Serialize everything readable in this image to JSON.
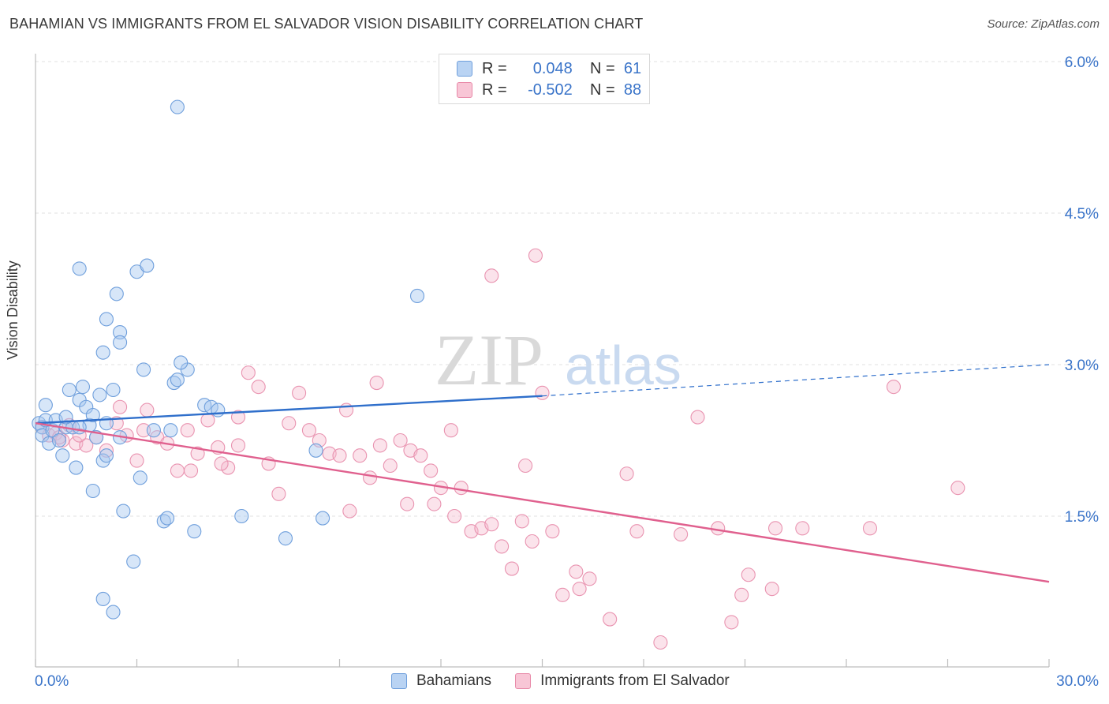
{
  "title": "BAHAMIAN VS IMMIGRANTS FROM EL SALVADOR VISION DISABILITY CORRELATION CHART",
  "source": "Source: ZipAtlas.com",
  "watermark": {
    "zip": "ZIP",
    "atlas": "atlas"
  },
  "legend": {
    "r_label": "R =",
    "n_label": "N =",
    "series": [
      {
        "r": "0.048",
        "n": "61",
        "fill": "#b9d3f3",
        "stroke": "#6f9fdc"
      },
      {
        "r": "-0.502",
        "n": "88",
        "fill": "#f8c6d6",
        "stroke": "#e88aa9"
      }
    ]
  },
  "bottom_legend": [
    "Bahamians",
    "Immigrants from El Salvador"
  ],
  "colors": {
    "blue_fill": "rgba(166,199,240,0.45)",
    "blue_stroke": "#6f9fdc",
    "blue_line": "#2f6fcb",
    "pink_fill": "rgba(246,184,204,0.40)",
    "pink_stroke": "#e993b0",
    "pink_line": "#e0608e",
    "axis_text": "#3a74c9",
    "grid": "#e0e0e0"
  },
  "chart_data": {
    "type": "scatter",
    "title": "BAHAMIAN VS IMMIGRANTS FROM EL SALVADOR VISION DISABILITY CORRELATION CHART",
    "xlabel": "",
    "ylabel": "Vision Disability",
    "xlim": [
      0,
      30
    ],
    "ylim": [
      0,
      6.3
    ],
    "x_tick_labels": [
      "0.0%",
      "30.0%"
    ],
    "y_ticks": [
      1.5,
      3.0,
      4.5,
      6.0
    ],
    "y_tick_labels": [
      "1.5%",
      "3.0%",
      "4.5%",
      "6.0%"
    ],
    "grid": true,
    "legend_position": "top-center",
    "series": [
      {
        "name": "Bahamians",
        "trend": {
          "x0": 0,
          "y0": 2.42,
          "x1": 15,
          "y1": 2.69,
          "dash_to_x": 30,
          "dash_to_y": 3.0
        },
        "points": [
          [
            0.1,
            2.42
          ],
          [
            0.2,
            2.38
          ],
          [
            0.3,
            2.45
          ],
          [
            0.2,
            2.3
          ],
          [
            0.4,
            2.22
          ],
          [
            0.3,
            2.6
          ],
          [
            0.5,
            2.35
          ],
          [
            0.6,
            2.45
          ],
          [
            0.7,
            2.25
          ],
          [
            0.8,
            2.1
          ],
          [
            0.9,
            2.38
          ],
          [
            1.0,
            2.75
          ],
          [
            1.1,
            2.38
          ],
          [
            1.2,
            1.98
          ],
          [
            1.3,
            2.65
          ],
          [
            1.4,
            2.78
          ],
          [
            1.5,
            2.58
          ],
          [
            1.6,
            2.4
          ],
          [
            1.7,
            2.5
          ],
          [
            1.8,
            2.28
          ],
          [
            1.9,
            2.7
          ],
          [
            2.0,
            2.05
          ],
          [
            2.1,
            2.42
          ],
          [
            2.3,
            2.75
          ],
          [
            2.5,
            2.28
          ],
          [
            1.3,
            2.38
          ],
          [
            0.9,
            2.48
          ],
          [
            2.1,
            2.1
          ],
          [
            3.1,
            1.88
          ],
          [
            1.7,
            1.75
          ],
          [
            2.6,
            1.55
          ],
          [
            3.5,
            2.35
          ],
          [
            2.0,
            3.12
          ],
          [
            2.1,
            3.45
          ],
          [
            3.2,
            2.95
          ],
          [
            4.1,
            2.82
          ],
          [
            4.2,
            2.85
          ],
          [
            4.5,
            2.95
          ],
          [
            4.3,
            3.02
          ],
          [
            5.0,
            2.6
          ],
          [
            5.2,
            2.58
          ],
          [
            5.4,
            2.55
          ],
          [
            1.3,
            3.95
          ],
          [
            2.4,
            3.7
          ],
          [
            2.5,
            3.32
          ],
          [
            2.5,
            3.22
          ],
          [
            3.0,
            3.92
          ],
          [
            3.3,
            3.98
          ],
          [
            4.0,
            2.35
          ],
          [
            3.8,
            1.45
          ],
          [
            3.9,
            1.48
          ],
          [
            4.7,
            1.35
          ],
          [
            6.1,
            1.5
          ],
          [
            7.4,
            1.28
          ],
          [
            8.3,
            2.15
          ],
          [
            8.5,
            1.48
          ],
          [
            2.9,
            1.05
          ],
          [
            2.0,
            0.68
          ],
          [
            2.3,
            0.55
          ],
          [
            11.3,
            3.68
          ],
          [
            4.2,
            5.55
          ]
        ]
      },
      {
        "name": "Immigrants from El Salvador",
        "trend": {
          "x0": 0,
          "y0": 2.42,
          "x1": 30,
          "y1": 0.85
        },
        "points": [
          [
            0.2,
            2.38
          ],
          [
            0.4,
            2.3
          ],
          [
            0.6,
            2.32
          ],
          [
            0.8,
            2.25
          ],
          [
            1.0,
            2.4
          ],
          [
            1.2,
            2.22
          ],
          [
            1.5,
            2.2
          ],
          [
            1.8,
            2.28
          ],
          [
            2.1,
            2.15
          ],
          [
            2.4,
            2.42
          ],
          [
            2.7,
            2.3
          ],
          [
            3.0,
            2.05
          ],
          [
            3.3,
            2.55
          ],
          [
            3.6,
            2.28
          ],
          [
            3.9,
            2.22
          ],
          [
            4.2,
            1.95
          ],
          [
            4.5,
            2.35
          ],
          [
            4.8,
            2.12
          ],
          [
            5.1,
            2.45
          ],
          [
            5.4,
            2.18
          ],
          [
            5.7,
            1.98
          ],
          [
            6.0,
            2.2
          ],
          [
            6.3,
            2.92
          ],
          [
            6.6,
            2.78
          ],
          [
            6.9,
            2.02
          ],
          [
            7.2,
            1.72
          ],
          [
            7.5,
            2.42
          ],
          [
            7.8,
            2.72
          ],
          [
            8.1,
            2.35
          ],
          [
            8.4,
            2.25
          ],
          [
            8.7,
            2.12
          ],
          [
            9.0,
            2.1
          ],
          [
            9.3,
            1.55
          ],
          [
            9.6,
            2.1
          ],
          [
            9.9,
            1.88
          ],
          [
            10.2,
            2.2
          ],
          [
            10.5,
            2.0
          ],
          [
            10.8,
            2.25
          ],
          [
            11.1,
            2.15
          ],
          [
            11.4,
            2.1
          ],
          [
            11.7,
            1.95
          ],
          [
            12.0,
            1.78
          ],
          [
            12.3,
            2.35
          ],
          [
            12.6,
            1.78
          ],
          [
            12.9,
            1.35
          ],
          [
            13.2,
            1.38
          ],
          [
            13.5,
            1.42
          ],
          [
            13.8,
            1.2
          ],
          [
            14.1,
            0.98
          ],
          [
            14.4,
            1.45
          ],
          [
            14.7,
            1.25
          ],
          [
            15.0,
            2.72
          ],
          [
            15.3,
            1.35
          ],
          [
            15.6,
            0.72
          ],
          [
            16.1,
            0.78
          ],
          [
            16.4,
            0.88
          ],
          [
            17.0,
            0.48
          ],
          [
            17.5,
            1.92
          ],
          [
            17.8,
            1.35
          ],
          [
            18.5,
            0.25
          ],
          [
            19.1,
            1.32
          ],
          [
            19.6,
            2.48
          ],
          [
            20.2,
            1.38
          ],
          [
            20.6,
            0.45
          ],
          [
            20.9,
            0.72
          ],
          [
            21.1,
            0.92
          ],
          [
            21.8,
            0.78
          ],
          [
            21.9,
            1.38
          ],
          [
            13.5,
            3.88
          ],
          [
            14.8,
            4.08
          ],
          [
            10.1,
            2.82
          ],
          [
            9.2,
            2.55
          ],
          [
            6.0,
            2.48
          ],
          [
            5.5,
            2.02
          ],
          [
            4.6,
            1.95
          ],
          [
            3.2,
            2.35
          ],
          [
            2.5,
            2.58
          ],
          [
            1.3,
            2.3
          ],
          [
            0.7,
            2.28
          ],
          [
            11.8,
            1.62
          ],
          [
            12.4,
            1.5
          ],
          [
            14.5,
            2.0
          ],
          [
            16.0,
            0.95
          ],
          [
            22.7,
            1.38
          ],
          [
            24.7,
            1.38
          ],
          [
            25.4,
            2.78
          ],
          [
            27.3,
            1.78
          ],
          [
            11.0,
            1.62
          ]
        ]
      }
    ]
  }
}
